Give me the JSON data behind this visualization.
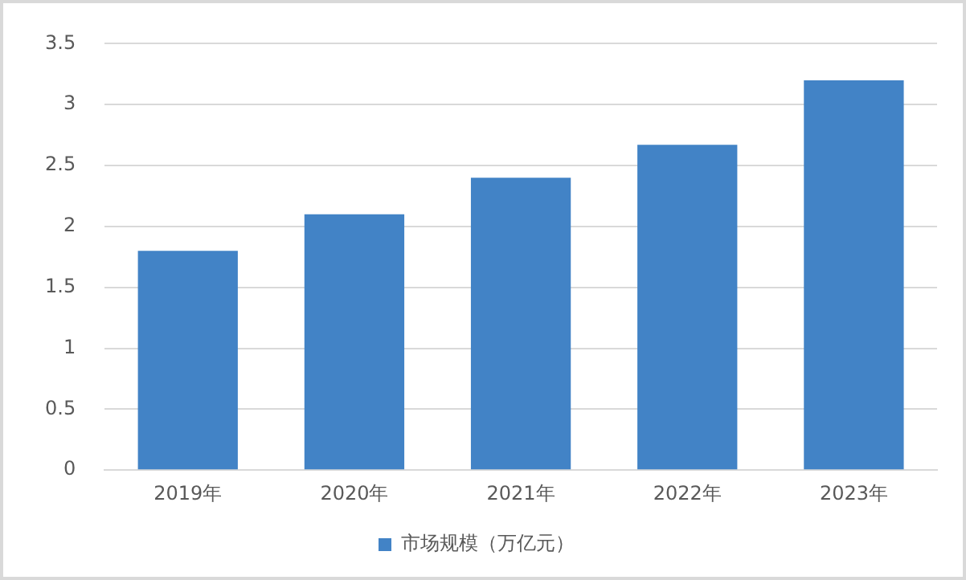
{
  "chart_data": {
    "type": "bar",
    "categories": [
      "2019年",
      "2020年",
      "2021年",
      "2022年",
      "2023年"
    ],
    "series": [
      {
        "name": "市场规模（万亿元）",
        "color": "#4283c6",
        "values": [
          1.8,
          2.1,
          2.4,
          2.67,
          3.2
        ]
      }
    ],
    "ylim": [
      0,
      3.5
    ],
    "yticks": [
      0,
      0.5,
      1,
      1.5,
      2,
      2.5,
      3,
      3.5
    ],
    "grid": "y",
    "legend": "bottom"
  }
}
